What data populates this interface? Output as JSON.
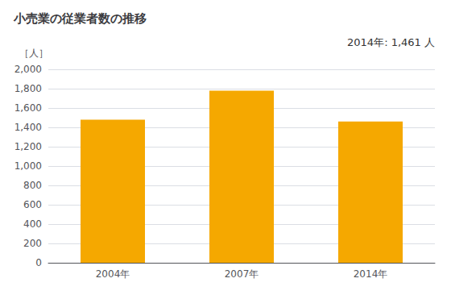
{
  "chart_data": {
    "type": "bar",
    "title": "小売業の従業者数の推移",
    "ylabel": "［人］",
    "annotation": "2014年: 1,461 人",
    "categories": [
      "2004年",
      "2007年",
      "2014年"
    ],
    "values": [
      1480,
      1780,
      1461
    ],
    "color": "#F5A800",
    "ylim": [
      0,
      2000
    ],
    "yticks": [
      0,
      200,
      400,
      600,
      800,
      {
        "value": 1000,
        "label": "1,000"
      },
      {
        "value": 1200,
        "label": "1,200"
      },
      {
        "value": 1400,
        "label": "1,400"
      },
      {
        "value": 1600,
        "label": "1,600"
      },
      {
        "value": 1800,
        "label": "1,800"
      },
      {
        "value": 2000,
        "label": "2,000"
      }
    ],
    "grid": true
  }
}
